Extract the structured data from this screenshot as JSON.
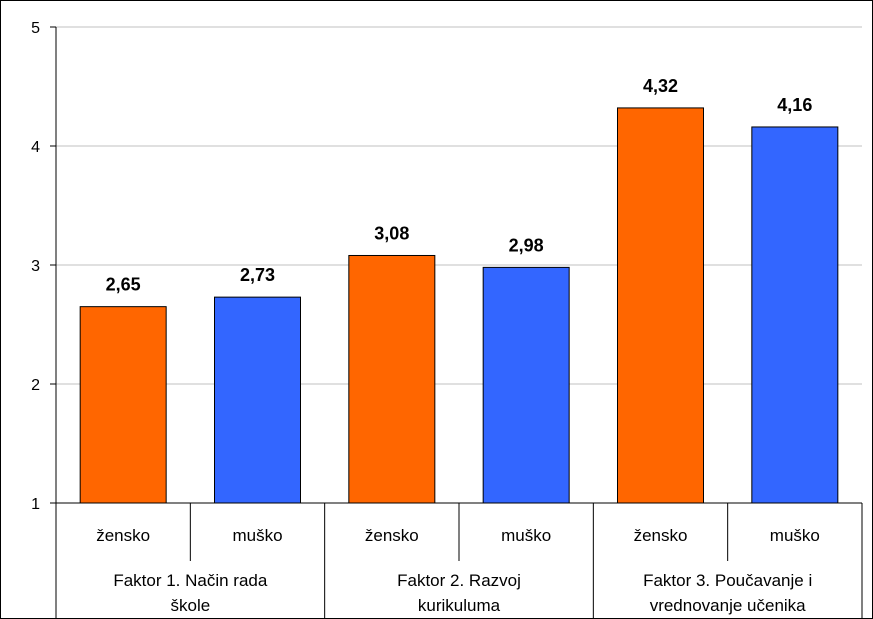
{
  "chart_data": {
    "type": "bar",
    "title": "",
    "xlabel": "",
    "ylabel": "",
    "ylim": [
      1,
      5
    ],
    "yticks": [
      "1",
      "2",
      "3",
      "4",
      "5"
    ],
    "grid": true,
    "legend": "none",
    "groups": [
      {
        "label": "Faktor 1. Način rada školе",
        "label_lines": [
          "Faktor 1. Način rada",
          "škole"
        ],
        "bars": [
          {
            "category": "žensko",
            "value": 2.65,
            "value_label": "2,65"
          },
          {
            "category": "muško",
            "value": 2.73,
            "value_label": "2,73"
          }
        ]
      },
      {
        "label": "Faktor 2. Razvoj kurikuluma",
        "label_lines": [
          "Faktor 2. Razvoj",
          "kurikuluma"
        ],
        "bars": [
          {
            "category": "žensko",
            "value": 3.08,
            "value_label": "3,08"
          },
          {
            "category": "muško",
            "value": 2.98,
            "value_label": "2,98"
          }
        ]
      },
      {
        "label": "Faktor 3. Poučavanje i vrednovanje učenika",
        "label_lines": [
          "Faktor 3. Poučavanje i",
          "vrednovanje učenika"
        ],
        "bars": [
          {
            "category": "žensko",
            "value": 4.32,
            "value_label": "4,32"
          },
          {
            "category": "muško",
            "value": 4.16,
            "value_label": "4,16"
          }
        ]
      }
    ],
    "colors": {
      "žensko": "#ff6600",
      "muško": "#3366ff",
      "grid": "#c0c0c0",
      "axis": "#000000"
    }
  }
}
